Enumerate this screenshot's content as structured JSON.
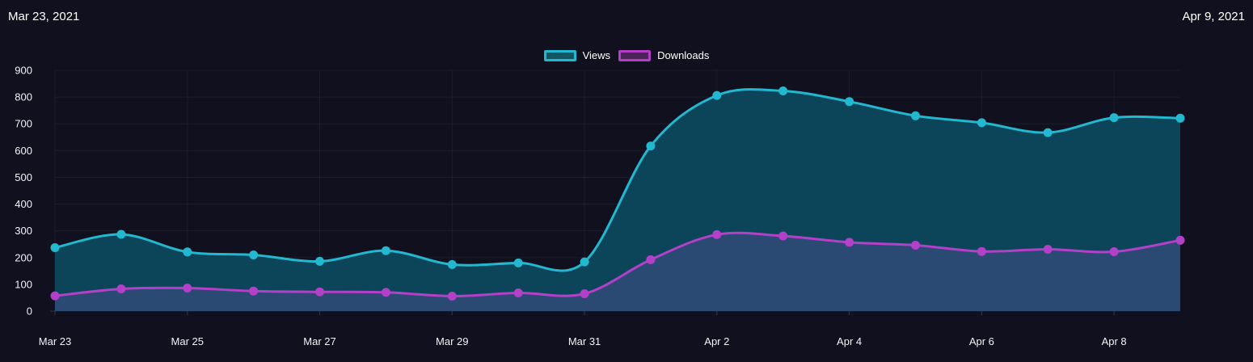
{
  "page": {
    "background": "#10101e"
  },
  "header": {
    "start_date": "Mar 23, 2021",
    "end_date": "Apr 9, 2021"
  },
  "legend": {
    "items": [
      {
        "label": "Views",
        "swatch_border": "#22b8cf",
        "swatch_fill": "#125663"
      },
      {
        "label": "Downloads",
        "swatch_border": "#b23ec9",
        "swatch_fill": "#4d2458"
      }
    ]
  },
  "chart_data": {
    "type": "area",
    "title": "",
    "xlabel": "",
    "ylabel": "",
    "x": [
      "Mar 23",
      "Mar 24",
      "Mar 25",
      "Mar 26",
      "Mar 27",
      "Mar 28",
      "Mar 29",
      "Mar 30",
      "Mar 31",
      "Apr 1",
      "Apr 2",
      "Apr 3",
      "Apr 4",
      "Apr 5",
      "Apr 6",
      "Apr 7",
      "Apr 8",
      "Apr 9"
    ],
    "series": [
      {
        "name": "Views",
        "line_color": "#22b8cf",
        "fill_color": "#0c4459",
        "values": [
          237,
          287,
          221,
          210,
          186,
          226,
          174,
          180,
          184,
          617,
          806,
          823,
          783,
          730,
          704,
          667,
          723,
          721
        ]
      },
      {
        "name": "Downloads",
        "line_color": "#b240c8",
        "fill_color": "#2b4a73",
        "values": [
          57,
          83,
          86,
          75,
          72,
          70,
          56,
          68,
          65,
          192,
          286,
          281,
          257,
          246,
          223,
          231,
          222,
          265
        ]
      }
    ],
    "x_tick_indices": [
      0,
      2,
      4,
      6,
      8,
      10,
      12,
      14,
      16
    ],
    "x_tick_labels": [
      "Mar 23",
      "Mar 25",
      "Mar 27",
      "Mar 29",
      "Mar 31",
      "Apr 2",
      "Apr 4",
      "Apr 6",
      "Apr 8"
    ],
    "y_ticks": [
      0,
      100,
      200,
      300,
      400,
      500,
      600,
      700,
      800,
      900
    ],
    "ylim": [
      0,
      900
    ],
    "grid": true,
    "legend_position": "top-center",
    "point_radius": 5.5,
    "line_width": 3
  }
}
